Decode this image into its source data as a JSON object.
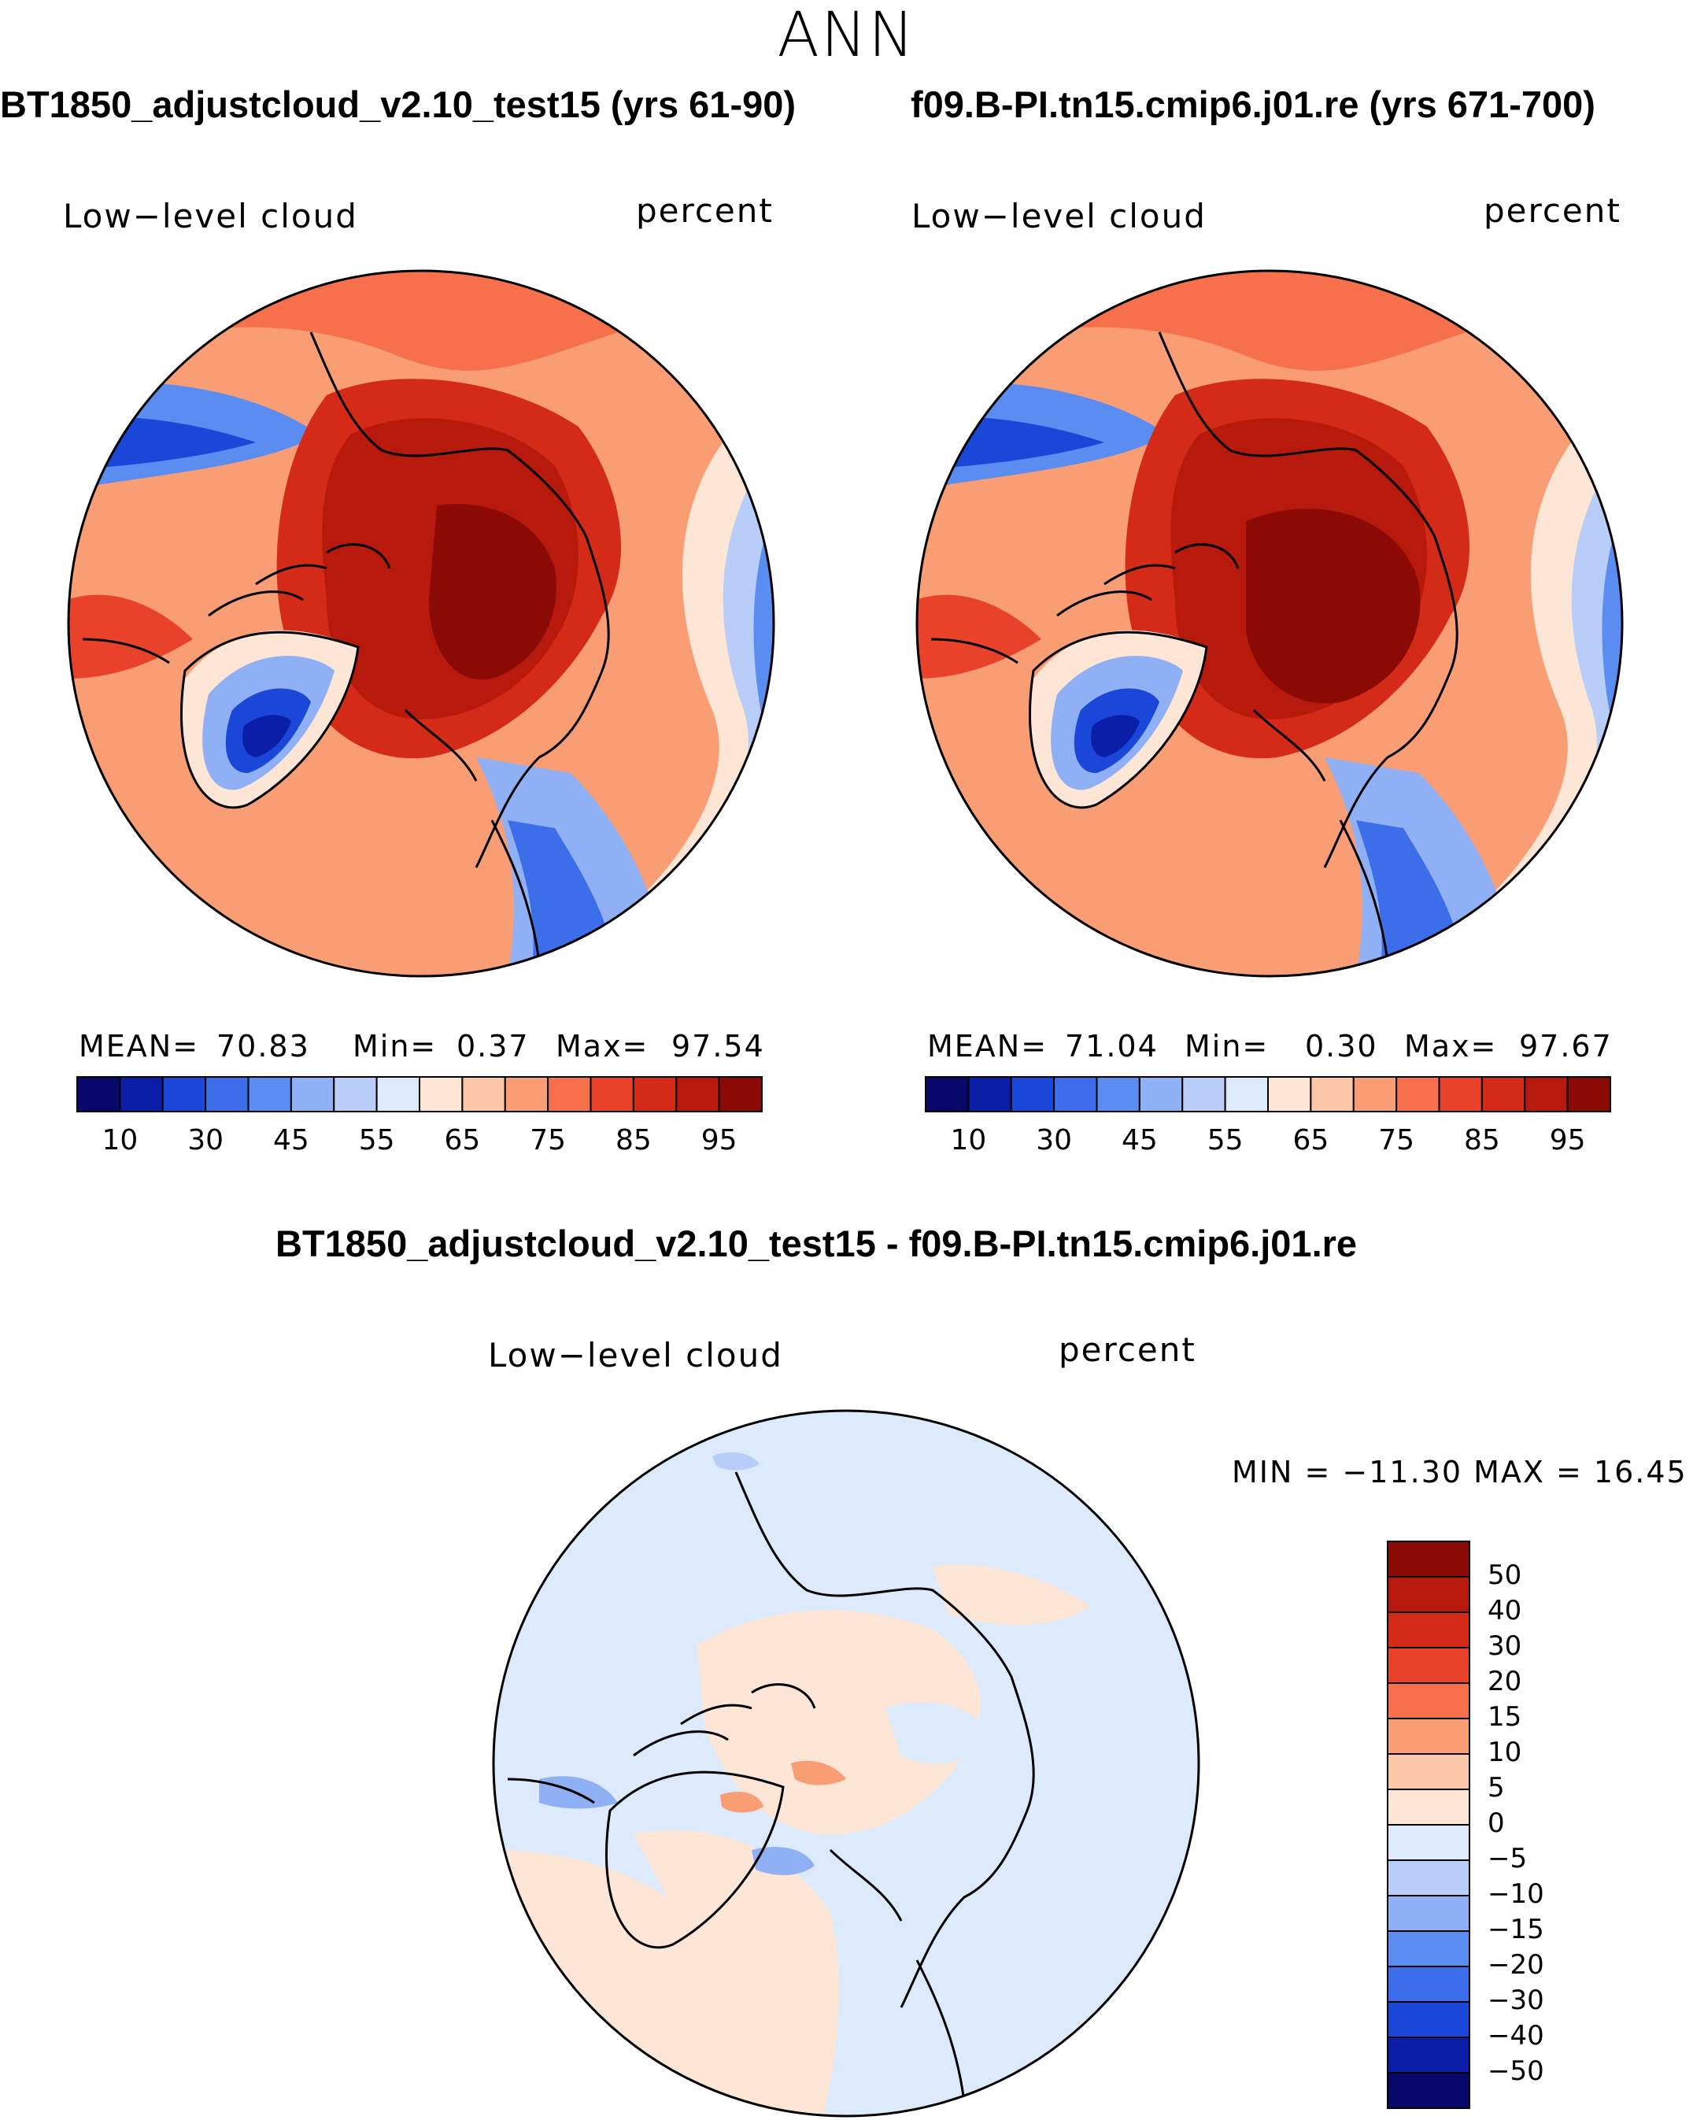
{
  "figure": {
    "season": "ANN"
  },
  "panels": [
    {
      "title": "BT1850_adjustcloud_v2.10_test15 (yrs 61-90)",
      "variable": "Low−level cloud",
      "units": "percent",
      "stats": {
        "mean_label": "MEAN=",
        "mean": "70.83",
        "min_label": "Min=",
        "min": "0.37",
        "max_label": "Max=",
        "max": "97.54"
      }
    },
    {
      "title": "f09.B-PI.tn15.cmip6.j01.re (yrs 671-700)",
      "variable": "Low−level cloud",
      "units": "percent",
      "stats": {
        "mean_label": "MEAN=",
        "mean": "71.04",
        "min_label": "Min=",
        "min": "0.30",
        "max_label": "Max=",
        "max": "97.67"
      }
    },
    {
      "title": "BT1850_adjustcloud_v2.10_test15 - f09.B-PI.tn15.cmip6.j01.re",
      "variable": "Low−level cloud",
      "units": "percent",
      "range_text": "MIN = −11.30 MAX =   16.45"
    }
  ],
  "chart_data": [
    {
      "type": "heatmap",
      "projection": "north polar stereographic",
      "title": "BT1850_adjustcloud_v2.10_test15 (yrs 61-90)",
      "field": "Low-level cloud",
      "units": "percent",
      "mean": 70.83,
      "min": 0.37,
      "max": 97.54,
      "colorbar_ticks": [
        "10",
        "30",
        "45",
        "55",
        "65",
        "75",
        "85",
        "95"
      ],
      "colorbar_colors": [
        "#08086b",
        "#0a1ea8",
        "#1a47d8",
        "#3b6ee8",
        "#5b8cf0",
        "#8fb0f5",
        "#b8cdf8",
        "#ddeafb",
        "#fde6d6",
        "#fcc6a9",
        "#f99d75",
        "#f5704b",
        "#e9422a",
        "#d42a18",
        "#b71a0c",
        "#8b0a06"
      ]
    },
    {
      "type": "heatmap",
      "projection": "north polar stereographic",
      "title": "f09.B-PI.tn15.cmip6.j01.re (yrs 671-700)",
      "field": "Low-level cloud",
      "units": "percent",
      "mean": 71.04,
      "min": 0.3,
      "max": 97.67,
      "colorbar_ticks": [
        "10",
        "30",
        "45",
        "55",
        "65",
        "75",
        "85",
        "95"
      ],
      "colorbar_colors": [
        "#08086b",
        "#0a1ea8",
        "#1a47d8",
        "#3b6ee8",
        "#5b8cf0",
        "#8fb0f5",
        "#b8cdf8",
        "#ddeafb",
        "#fde6d6",
        "#fcc6a9",
        "#f99d75",
        "#f5704b",
        "#e9422a",
        "#d42a18",
        "#b71a0c",
        "#8b0a06"
      ]
    },
    {
      "type": "heatmap",
      "projection": "north polar stereographic",
      "title": "BT1850_adjustcloud_v2.10_test15 - f09.B-PI.tn15.cmip6.j01.re",
      "field": "Low-level cloud difference",
      "units": "percent",
      "min": -11.3,
      "max": 16.45,
      "colorbar_ticks": [
        "50",
        "40",
        "30",
        "20",
        "15",
        "10",
        "5",
        "0",
        "−5",
        "−10",
        "−15",
        "−20",
        "−30",
        "−40",
        "−50"
      ],
      "colorbar_colors_top_to_bottom": [
        "#8b0a06",
        "#b71a0c",
        "#d42a18",
        "#e9422a",
        "#f5704b",
        "#f99d75",
        "#fcc6a9",
        "#fde6d6",
        "#ddeafb",
        "#b8cdf8",
        "#8fb0f5",
        "#5b8cf0",
        "#3b6ee8",
        "#1a47d8",
        "#0a1ea8",
        "#08086b"
      ]
    }
  ]
}
